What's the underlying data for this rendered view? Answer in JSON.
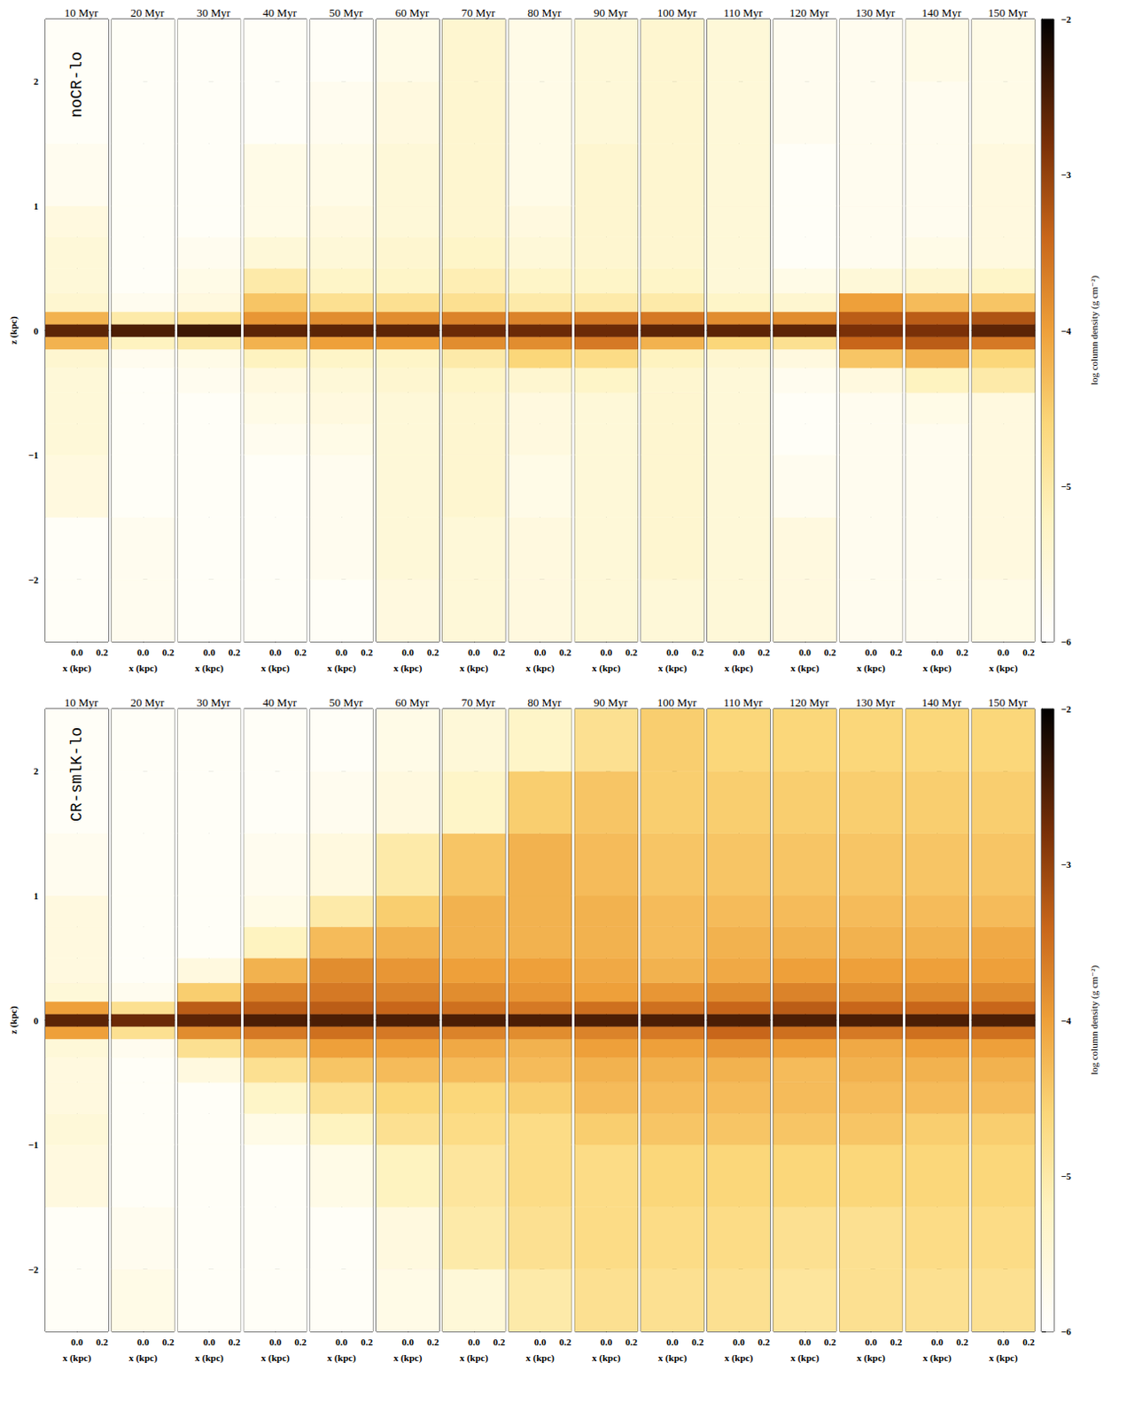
{
  "chart_data": [
    {
      "type": "heatmap",
      "title": "noCR-lo",
      "x_label": "x (kpc)",
      "y_label": "z (kpc)",
      "xlim": [
        -0.25,
        0.25
      ],
      "xticks": [
        {
          "value": 0,
          "label": "0.0"
        },
        {
          "value": 0.2,
          "label": "0.2"
        }
      ],
      "ylim": [
        -2.5,
        2.5
      ],
      "yticks": [
        {
          "value": -2,
          "label": "−2"
        },
        {
          "value": -1,
          "label": "−1"
        },
        0,
        1,
        2
      ],
      "z_edges": [
        -2.5,
        -2,
        -1.5,
        -1,
        -0.75,
        -0.5,
        -0.3,
        -0.15,
        -0.05,
        0.05,
        0.15,
        0.3,
        0.5,
        0.75,
        1,
        1.5,
        2,
        2.5
      ],
      "colorbar": {
        "label": "log column density (g cm⁻²)",
        "range": [
          -6,
          -2
        ],
        "ticks": [
          {
            "value": -6,
            "label": "−6"
          },
          {
            "value": -5,
            "label": "−5"
          },
          {
            "value": -4,
            "label": "−4"
          },
          {
            "value": -3,
            "label": "−3"
          },
          {
            "value": -2,
            "label": "−2"
          }
        ]
      },
      "panels": [
        {
          "title": "10 Myr",
          "values": [
            -5.9,
            -5.9,
            -5.6,
            -5.5,
            -5.5,
            -5.5,
            -5.4,
            -4.2,
            -2.6,
            -4.2,
            -5.4,
            -5.5,
            -5.5,
            -5.6,
            -5.8,
            -5.9,
            -5.9
          ]
        },
        {
          "title": "20 Myr",
          "values": [
            -5.8,
            -5.8,
            -5.9,
            -5.9,
            -5.9,
            -5.9,
            -5.8,
            -5.2,
            -2.5,
            -5.0,
            -5.8,
            -5.9,
            -5.9,
            -5.9,
            -5.9,
            -5.9,
            -5.9
          ]
        },
        {
          "title": "30 Myr",
          "values": [
            -5.9,
            -5.9,
            -5.9,
            -5.9,
            -5.9,
            -5.8,
            -5.7,
            -5.0,
            -2.4,
            -4.8,
            -5.6,
            -5.7,
            -5.8,
            -5.9,
            -5.9,
            -5.9,
            -5.9
          ]
        },
        {
          "title": "40 Myr",
          "values": [
            -5.9,
            -5.9,
            -5.9,
            -5.8,
            -5.7,
            -5.6,
            -5.2,
            -4.2,
            -2.6,
            -3.9,
            -4.4,
            -5.0,
            -5.5,
            -5.7,
            -5.7,
            -5.9,
            -5.9
          ]
        },
        {
          "title": "50 Myr",
          "values": [
            -5.9,
            -5.8,
            -5.8,
            -5.7,
            -5.6,
            -5.5,
            -5.3,
            -4.0,
            -2.6,
            -3.8,
            -4.8,
            -5.3,
            -5.5,
            -5.6,
            -5.7,
            -5.8,
            -5.9
          ]
        },
        {
          "title": "60 Myr",
          "values": [
            -5.6,
            -5.5,
            -5.5,
            -5.5,
            -5.5,
            -5.4,
            -5.3,
            -4.0,
            -2.6,
            -3.8,
            -4.8,
            -5.3,
            -5.4,
            -5.5,
            -5.5,
            -5.6,
            -5.7
          ]
        },
        {
          "title": "70 Myr",
          "values": [
            -5.5,
            -5.5,
            -5.4,
            -5.4,
            -5.4,
            -5.3,
            -5.0,
            -3.8,
            -2.7,
            -3.7,
            -4.8,
            -5.1,
            -5.3,
            -5.4,
            -5.4,
            -5.4,
            -5.4
          ]
        },
        {
          "title": "80 Myr",
          "values": [
            -5.6,
            -5.6,
            -5.7,
            -5.6,
            -5.6,
            -5.4,
            -4.6,
            -3.8,
            -2.7,
            -3.7,
            -5.0,
            -5.3,
            -5.5,
            -5.6,
            -5.7,
            -5.7,
            -5.7
          ]
        },
        {
          "title": "90 Myr",
          "values": [
            -5.5,
            -5.5,
            -5.5,
            -5.5,
            -5.5,
            -5.3,
            -4.7,
            -3.6,
            -2.7,
            -3.6,
            -5.0,
            -5.3,
            -5.4,
            -5.4,
            -5.4,
            -5.5,
            -5.5
          ]
        },
        {
          "title": "100 Myr",
          "values": [
            -5.5,
            -5.4,
            -5.4,
            -5.4,
            -5.4,
            -5.4,
            -5.2,
            -4.2,
            -2.6,
            -3.6,
            -5.0,
            -5.3,
            -5.4,
            -5.4,
            -5.4,
            -5.4,
            -5.4
          ]
        },
        {
          "title": "110 Myr",
          "values": [
            -5.5,
            -5.5,
            -5.5,
            -5.5,
            -5.5,
            -5.5,
            -5.4,
            -4.6,
            -2.6,
            -3.8,
            -5.3,
            -5.5,
            -5.5,
            -5.5,
            -5.5,
            -5.5,
            -5.5
          ]
        },
        {
          "title": "120 Myr",
          "values": [
            -5.6,
            -5.6,
            -5.8,
            -5.9,
            -5.9,
            -5.8,
            -5.6,
            -4.8,
            -2.6,
            -3.8,
            -5.4,
            -5.7,
            -5.9,
            -5.9,
            -5.9,
            -5.8,
            -5.8
          ]
        },
        {
          "title": "130 Myr",
          "values": [
            -5.8,
            -5.8,
            -5.8,
            -5.8,
            -5.8,
            -5.6,
            -4.4,
            -3.4,
            -2.8,
            -3.3,
            -4.0,
            -5.5,
            -5.8,
            -5.8,
            -5.8,
            -5.8,
            -5.8
          ]
        },
        {
          "title": "140 Myr",
          "values": [
            -5.8,
            -5.8,
            -5.8,
            -5.8,
            -5.7,
            -5.2,
            -4.2,
            -3.3,
            -2.8,
            -3.3,
            -4.3,
            -5.4,
            -5.7,
            -5.8,
            -5.8,
            -5.8,
            -5.7
          ]
        },
        {
          "title": "150 Myr",
          "values": [
            -5.7,
            -5.6,
            -5.6,
            -5.6,
            -5.6,
            -5.0,
            -4.6,
            -3.6,
            -2.6,
            -3.2,
            -4.4,
            -5.3,
            -5.6,
            -5.6,
            -5.6,
            -5.7,
            -5.7
          ]
        }
      ]
    },
    {
      "type": "heatmap",
      "title": "CR-smlK-lo",
      "x_label": "x (kpc)",
      "y_label": "z (kpc)",
      "xlim": [
        -0.25,
        0.25
      ],
      "xticks": [
        {
          "value": 0,
          "label": "0.0"
        },
        {
          "value": 0.2,
          "label": "0.2"
        }
      ],
      "ylim": [
        -2.5,
        2.5
      ],
      "yticks": [
        {
          "value": -2,
          "label": "−2"
        },
        {
          "value": -1,
          "label": "−1"
        },
        0,
        1,
        2
      ],
      "z_edges": [
        -2.5,
        -2,
        -1.5,
        -1,
        -0.75,
        -0.5,
        -0.3,
        -0.15,
        -0.05,
        0.05,
        0.15,
        0.3,
        0.5,
        0.75,
        1,
        1.5,
        2,
        2.5
      ],
      "colorbar": {
        "label": "log column density (g cm⁻²)",
        "range": [
          -6,
          -2
        ],
        "ticks": [
          {
            "value": -6,
            "label": "−6"
          },
          {
            "value": -5,
            "label": "−5"
          },
          {
            "value": -4,
            "label": "−4"
          },
          {
            "value": -3,
            "label": "−3"
          },
          {
            "value": -2,
            "label": "−2"
          }
        ]
      },
      "panels": [
        {
          "title": "10 Myr",
          "values": [
            -5.9,
            -5.9,
            -5.6,
            -5.5,
            -5.6,
            -5.6,
            -5.5,
            -4.0,
            -2.6,
            -4.0,
            -5.5,
            -5.6,
            -5.6,
            -5.6,
            -5.8,
            -5.9,
            -5.9
          ]
        },
        {
          "title": "20 Myr",
          "values": [
            -5.7,
            -5.8,
            -5.9,
            -5.9,
            -5.9,
            -5.9,
            -5.8,
            -4.8,
            -2.7,
            -4.8,
            -5.8,
            -5.9,
            -5.9,
            -5.9,
            -5.9,
            -5.9,
            -5.9
          ]
        },
        {
          "title": "30 Myr",
          "values": [
            -5.9,
            -5.9,
            -5.9,
            -5.9,
            -5.9,
            -5.6,
            -4.8,
            -3.8,
            -2.6,
            -3.3,
            -4.5,
            -5.6,
            -5.9,
            -5.9,
            -5.9,
            -5.9,
            -5.9
          ]
        },
        {
          "title": "40 Myr",
          "values": [
            -5.9,
            -5.9,
            -5.9,
            -5.7,
            -5.3,
            -4.8,
            -4.3,
            -3.6,
            -2.5,
            -3.3,
            -3.7,
            -4.2,
            -5.2,
            -5.7,
            -5.8,
            -5.9,
            -5.9
          ]
        },
        {
          "title": "50 Myr",
          "values": [
            -5.9,
            -5.9,
            -5.7,
            -5.2,
            -4.8,
            -4.4,
            -4.0,
            -3.5,
            -2.5,
            -3.3,
            -3.6,
            -3.8,
            -4.3,
            -5.0,
            -5.6,
            -5.8,
            -5.9
          ]
        },
        {
          "title": "60 Myr",
          "values": [
            -5.7,
            -5.6,
            -5.2,
            -4.8,
            -4.6,
            -4.3,
            -4.0,
            -3.6,
            -2.5,
            -3.4,
            -3.7,
            -3.9,
            -4.2,
            -4.5,
            -5.0,
            -5.6,
            -5.7
          ]
        },
        {
          "title": "70 Myr",
          "values": [
            -5.5,
            -5.0,
            -4.9,
            -4.7,
            -4.6,
            -4.3,
            -4.1,
            -3.7,
            -2.5,
            -3.5,
            -3.8,
            -4.0,
            -4.2,
            -4.2,
            -4.4,
            -5.3,
            -5.5
          ]
        },
        {
          "title": "80 Myr",
          "values": [
            -5.0,
            -4.8,
            -4.7,
            -4.7,
            -4.5,
            -4.3,
            -4.2,
            -3.8,
            -2.5,
            -3.6,
            -3.9,
            -4.0,
            -4.2,
            -4.2,
            -4.2,
            -4.5,
            -5.3
          ]
        },
        {
          "title": "90 Myr",
          "values": [
            -4.8,
            -4.7,
            -4.7,
            -4.5,
            -4.3,
            -4.2,
            -4.0,
            -3.7,
            -2.5,
            -3.5,
            -4.0,
            -4.1,
            -4.2,
            -4.2,
            -4.3,
            -4.4,
            -4.8
          ]
        },
        {
          "title": "100 Myr",
          "values": [
            -4.8,
            -4.7,
            -4.6,
            -4.4,
            -4.3,
            -4.2,
            -4.0,
            -3.6,
            -2.5,
            -3.5,
            -3.9,
            -4.2,
            -4.3,
            -4.3,
            -4.4,
            -4.5,
            -4.5
          ]
        },
        {
          "title": "110 Myr",
          "values": [
            -4.8,
            -4.7,
            -4.6,
            -4.4,
            -4.3,
            -4.2,
            -3.9,
            -3.4,
            -2.5,
            -3.4,
            -3.8,
            -4.1,
            -4.2,
            -4.3,
            -4.4,
            -4.5,
            -4.6
          ]
        },
        {
          "title": "120 Myr",
          "values": [
            -4.9,
            -4.8,
            -4.6,
            -4.4,
            -4.3,
            -4.3,
            -4.0,
            -3.5,
            -2.5,
            -3.3,
            -3.7,
            -4.0,
            -4.2,
            -4.3,
            -4.4,
            -4.5,
            -4.6
          ]
        },
        {
          "title": "130 Myr",
          "values": [
            -4.8,
            -4.8,
            -4.6,
            -4.4,
            -4.3,
            -4.2,
            -4.1,
            -3.6,
            -2.5,
            -3.4,
            -3.8,
            -4.0,
            -4.2,
            -4.3,
            -4.4,
            -4.5,
            -4.6
          ]
        },
        {
          "title": "140 Myr",
          "values": [
            -4.8,
            -4.7,
            -4.6,
            -4.5,
            -4.3,
            -4.2,
            -4.0,
            -3.5,
            -2.5,
            -3.4,
            -3.8,
            -4.0,
            -4.2,
            -4.3,
            -4.4,
            -4.5,
            -4.6
          ]
        },
        {
          "title": "150 Myr",
          "values": [
            -4.8,
            -4.7,
            -4.6,
            -4.5,
            -4.3,
            -4.2,
            -4.0,
            -3.5,
            -2.5,
            -3.4,
            -3.8,
            -4.0,
            -4.1,
            -4.3,
            -4.4,
            -4.5,
            -4.6
          ]
        }
      ]
    }
  ]
}
